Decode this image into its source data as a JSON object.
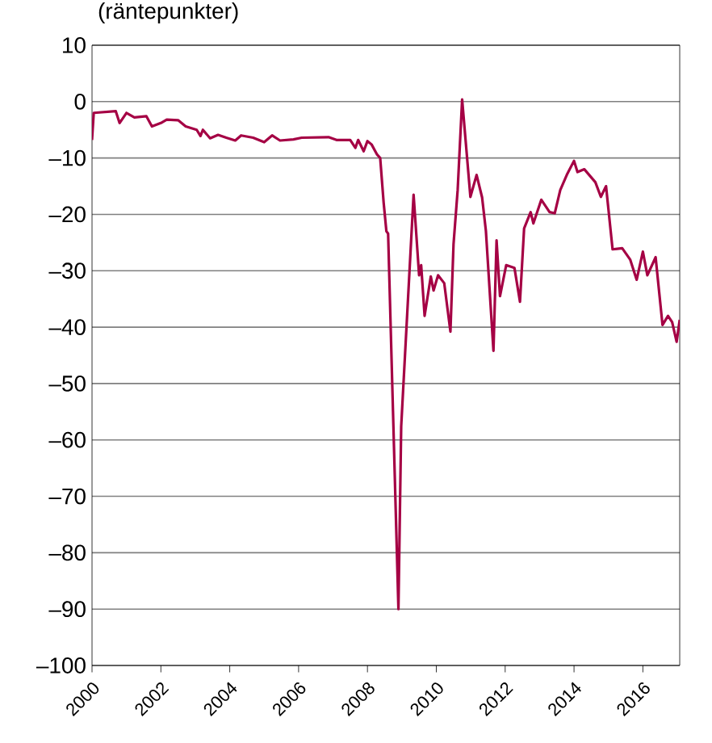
{
  "chart_data": {
    "type": "line",
    "title": "(räntepunkter)",
    "grid": "y",
    "xlim": [
      2000,
      2017.07
    ],
    "ylim": [
      -100,
      10
    ],
    "xticks": [
      2000,
      2002,
      2004,
      2006,
      2008,
      2010,
      2012,
      2014,
      2016
    ],
    "yticks": [
      10,
      0,
      {
        "value": -10,
        "label": "–10"
      },
      {
        "value": -20,
        "label": "–20"
      },
      {
        "value": -30,
        "label": "–30"
      },
      {
        "value": -40,
        "label": "–40"
      },
      {
        "value": -50,
        "label": "–50"
      },
      {
        "value": -60,
        "label": "–60"
      },
      {
        "value": -70,
        "label": "–70"
      },
      {
        "value": -80,
        "label": "–80"
      },
      {
        "value": -90,
        "label": "–90"
      },
      {
        "value": -100,
        "label": "–100"
      }
    ],
    "series": [
      {
        "color": "#a50044",
        "x": [
          2000.0,
          2000.05,
          2000.69,
          2000.8,
          2001.0,
          2001.23,
          2001.58,
          2001.74,
          2002.0,
          2002.17,
          2002.5,
          2002.72,
          2003.04,
          2003.15,
          2003.22,
          2003.43,
          2003.66,
          2003.9,
          2004.16,
          2004.33,
          2004.68,
          2005.0,
          2005.23,
          2005.46,
          2005.85,
          2006.09,
          2006.87,
          2007.1,
          2007.5,
          2007.65,
          2007.73,
          2007.89,
          2008.0,
          2008.12,
          2008.28,
          2008.37,
          2008.47,
          2008.55,
          2008.6,
          2008.9,
          2008.98,
          2009.34,
          2009.5,
          2009.56,
          2009.66,
          2009.84,
          2009.92,
          2010.05,
          2010.23,
          2010.41,
          2010.5,
          2010.62,
          2010.75,
          2010.99,
          2011.17,
          2011.33,
          2011.44,
          2011.66,
          2011.75,
          2011.85,
          2012.03,
          2012.27,
          2012.43,
          2012.55,
          2012.74,
          2012.82,
          2013.05,
          2013.29,
          2013.44,
          2013.6,
          2013.79,
          2014.0,
          2014.1,
          2014.3,
          2014.62,
          2014.78,
          2014.93,
          2015.12,
          2015.4,
          2015.63,
          2015.82,
          2016.0,
          2016.13,
          2016.37,
          2016.57,
          2016.73,
          2016.85,
          2016.98,
          2017.07
        ],
        "values": [
          -6.8,
          -2.0,
          -1.7,
          -3.8,
          -2.0,
          -2.8,
          -2.6,
          -4.4,
          -3.8,
          -3.2,
          -3.3,
          -4.4,
          -5.0,
          -6.1,
          -5.0,
          -6.5,
          -5.9,
          -6.4,
          -6.9,
          -6.0,
          -6.4,
          -7.2,
          -6.0,
          -6.9,
          -6.7,
          -6.4,
          -6.3,
          -6.8,
          -6.8,
          -8.2,
          -6.8,
          -8.8,
          -7.0,
          -7.6,
          -9.4,
          -10,
          -17.9,
          -23,
          -23.4,
          -90,
          -57.6,
          -16.5,
          -30.8,
          -29,
          -38,
          -31,
          -33.5,
          -30.8,
          -32.2,
          -40.8,
          -25.3,
          -15.7,
          0.4,
          -16.9,
          -13,
          -17,
          -22.9,
          -44.2,
          -24.6,
          -34.5,
          -29,
          -29.5,
          -35.5,
          -22.5,
          -19.6,
          -21.6,
          -17.4,
          -19.6,
          -19.8,
          -15.7,
          -13,
          -10.5,
          -12.5,
          -12,
          -14.3,
          -16.9,
          -15,
          -26.2,
          -26,
          -28,
          -31.6,
          -26.6,
          -30.8,
          -27.6,
          -39.6,
          -38,
          -39.1,
          -42.6,
          -38.7
        ]
      }
    ]
  }
}
